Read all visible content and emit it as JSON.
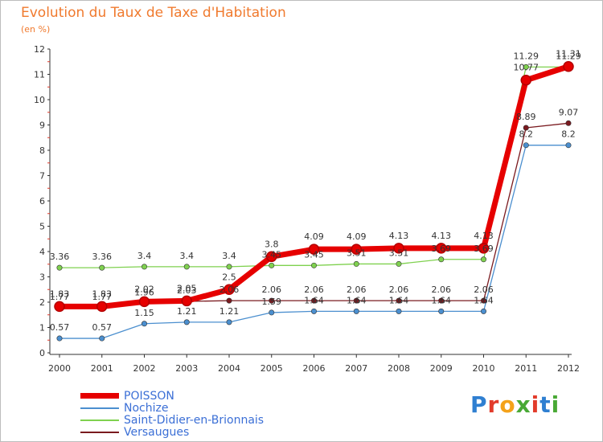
{
  "title": "Evolution du Taux de Taxe d'Habitation",
  "subtitle": "(en %)",
  "brand": {
    "letters": [
      {
        "ch": "P",
        "color": "#2f7fd1"
      },
      {
        "ch": "r",
        "color": "#e23b2b"
      },
      {
        "ch": "o",
        "color": "#f4a21a"
      },
      {
        "ch": "x",
        "color": "#49a935"
      },
      {
        "ch": "i",
        "color": "#e23b2b"
      },
      {
        "ch": "t",
        "color": "#2f7fd1"
      },
      {
        "ch": "i",
        "color": "#49a935"
      }
    ]
  },
  "chart_data": {
    "type": "line",
    "x": [
      "2000",
      "2001",
      "2002",
      "2003",
      "2004",
      "2005",
      "2006",
      "2007",
      "2008",
      "2009",
      "2010",
      "2011",
      "2012"
    ],
    "ylim": [
      0,
      12
    ],
    "yticks": [
      "0",
      "1",
      "2",
      "3",
      "4",
      "5",
      "6",
      "7",
      "8",
      "9",
      "10",
      "11",
      "12"
    ],
    "grid": false,
    "legend_position": "bottom-left",
    "series": [
      {
        "name": "POISSON",
        "color": "#e60000",
        "values": [
          1.83,
          1.83,
          2.02,
          2.05,
          2.5,
          3.8,
          4.09,
          4.09,
          4.13,
          4.13,
          4.13,
          10.77,
          11.31
        ],
        "labels": [
          "1.83",
          "1.83",
          "2.02",
          "2.05",
          "2.5",
          "3.8",
          "4.09",
          "4.09",
          "4.13",
          "4.13",
          "4.13",
          "10.77",
          "11.31"
        ]
      },
      {
        "name": "Nochize",
        "color": "#4b8fcf",
        "values": [
          0.57,
          0.57,
          1.15,
          1.21,
          1.21,
          1.59,
          1.64,
          1.64,
          1.64,
          1.64,
          1.64,
          8.2,
          8.2
        ],
        "labels": [
          "0.57",
          "0.57",
          "1.15",
          "1.21",
          "1.21",
          "1.59",
          "1.64",
          "1.64",
          "1.64",
          "1.64",
          "1.64",
          "8.2",
          "8.2"
        ]
      },
      {
        "name": "Saint-Didier-en-Brionnais",
        "color": "#7fd14f",
        "values": [
          3.36,
          3.36,
          3.4,
          3.4,
          3.4,
          3.45,
          3.45,
          3.51,
          3.51,
          3.69,
          3.69,
          11.29,
          11.29
        ],
        "labels": [
          "3.36",
          "3.36",
          "3.4",
          "3.4",
          "3.4",
          "3.45",
          "3.45",
          "3.51",
          "3.51",
          "3.69",
          "3.69",
          "11.29",
          "11.29"
        ]
      },
      {
        "name": "Versaugues",
        "color": "#7a1a1f",
        "values": [
          1.77,
          1.77,
          1.96,
          2.03,
          2.06,
          2.06,
          2.06,
          2.06,
          2.06,
          2.06,
          2.06,
          8.89,
          9.07
        ],
        "labels": [
          "1.77",
          "1.77",
          "1.96",
          "2.03",
          "2.06",
          "2.06",
          "2.06",
          "2.06",
          "2.06",
          "2.06",
          "2.06",
          "8.89",
          "9.07"
        ]
      }
    ]
  }
}
